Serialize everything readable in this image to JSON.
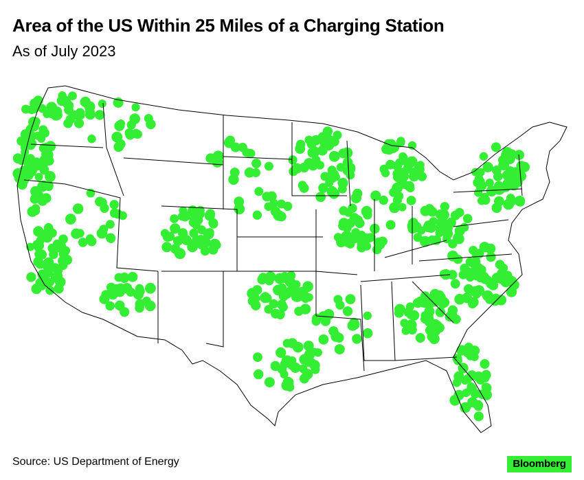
{
  "header": {
    "title": "Area of the US Within 25 Miles of a Charging Station",
    "subtitle": "As of July 2023"
  },
  "footer": {
    "source": "Source: US Department of Energy",
    "brand": "Bloomberg"
  },
  "map": {
    "region": "Contiguous United States",
    "coverage_color": "#33ee33",
    "border_color": "#000000",
    "background": "#ffffff"
  }
}
